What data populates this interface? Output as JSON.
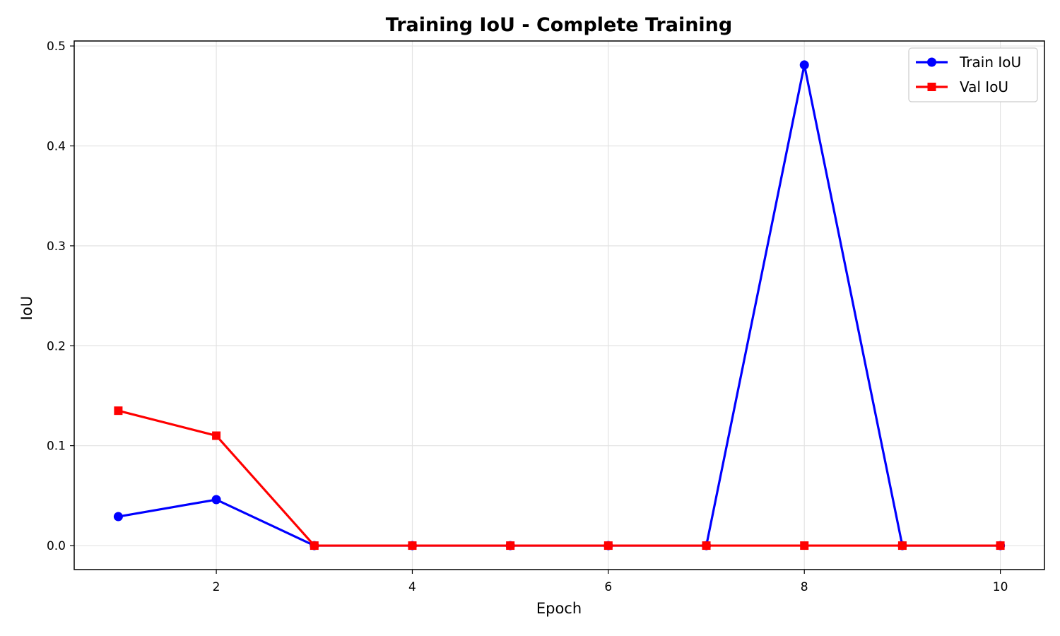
{
  "chart_data": {
    "type": "line",
    "title": "Training IoU - Complete Training",
    "xlabel": "Epoch",
    "ylabel": "IoU",
    "xlim": [
      0.55,
      10.45
    ],
    "ylim": [
      -0.024,
      0.505
    ],
    "xticks": [
      2,
      4,
      6,
      8,
      10
    ],
    "xtick_labels": [
      "2",
      "4",
      "6",
      "8",
      "10"
    ],
    "yticks": [
      0.0,
      0.1,
      0.2,
      0.3,
      0.4,
      0.5
    ],
    "ytick_labels": [
      "0.0",
      "0.1",
      "0.2",
      "0.3",
      "0.4",
      "0.5"
    ],
    "grid": true,
    "legend_position": "top-right",
    "x": [
      1,
      2,
      3,
      4,
      5,
      6,
      7,
      8,
      9,
      10
    ],
    "series": [
      {
        "name": "Train IoU",
        "color": "#0000ff",
        "marker": "circle",
        "values": [
          0.029,
          0.046,
          0.0,
          0.0,
          0.0,
          0.0,
          0.0,
          0.481,
          0.0,
          0.0
        ]
      },
      {
        "name": "Val IoU",
        "color": "#ff0000",
        "marker": "square",
        "values": [
          0.135,
          0.11,
          0.0,
          0.0,
          0.0,
          0.0,
          0.0,
          0.0,
          0.0,
          0.0
        ]
      }
    ]
  }
}
